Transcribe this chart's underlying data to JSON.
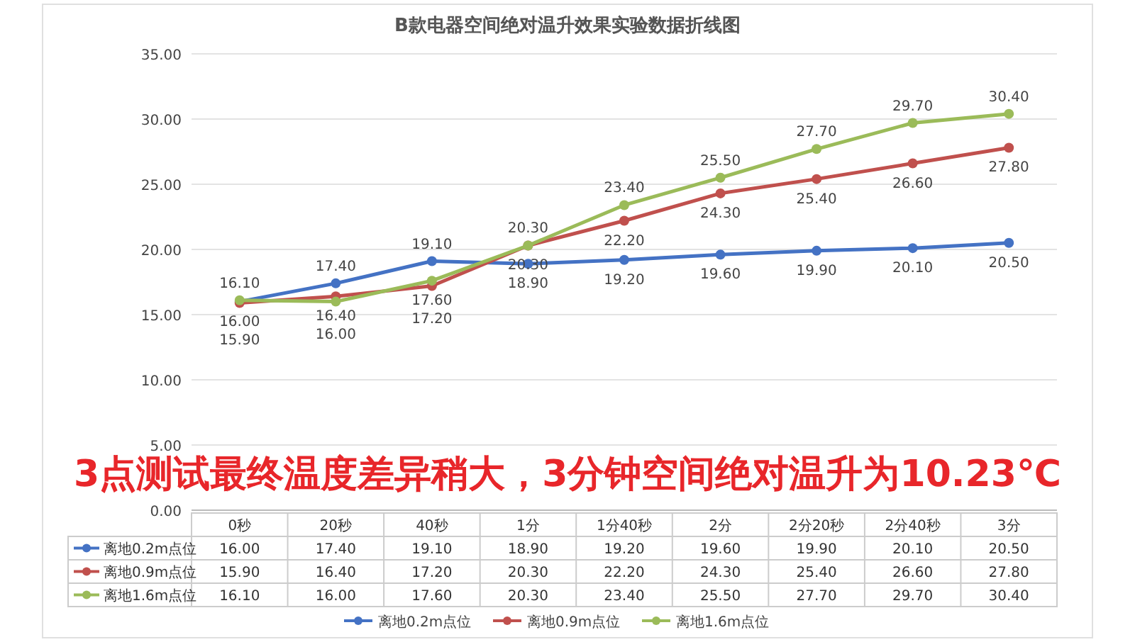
{
  "chart_data": {
    "type": "line",
    "title": "B款电器空间绝对温升效果实验数据折线图",
    "categories": [
      "0秒",
      "20秒",
      "40秒",
      "1分",
      "1分40秒",
      "2分",
      "2分20秒",
      "2分40秒",
      "3分"
    ],
    "series": [
      {
        "name": "离地0.2m点位",
        "color": "#4472c4",
        "values": [
          16.0,
          17.4,
          19.1,
          18.9,
          19.2,
          19.6,
          19.9,
          20.1,
          20.5
        ],
        "value_labels": [
          "16.00",
          "17.40",
          "19.10",
          "18.90",
          "19.20",
          "19.60",
          "19.90",
          "20.10",
          "20.50"
        ]
      },
      {
        "name": "离地0.9m点位",
        "color": "#c0504d",
        "values": [
          15.9,
          16.4,
          17.2,
          20.3,
          22.2,
          24.3,
          25.4,
          26.6,
          27.8
        ],
        "value_labels": [
          "15.90",
          "16.40",
          "17.20",
          "20.30",
          "22.20",
          "24.30",
          "25.40",
          "26.60",
          "27.80"
        ]
      },
      {
        "name": "离地1.6m点位",
        "color": "#9bbb59",
        "values": [
          16.1,
          16.0,
          17.6,
          20.3,
          23.4,
          25.5,
          27.7,
          29.7,
          30.4
        ],
        "value_labels": [
          "16.10",
          "16.00",
          "17.60",
          "20.30",
          "23.40",
          "25.50",
          "27.70",
          "29.70",
          "30.40"
        ]
      }
    ],
    "ylim": [
      0,
      35
    ],
    "yticks": [
      {
        "value": 0,
        "label": "0.00"
      },
      {
        "value": 5,
        "label": "5.00"
      },
      {
        "value": 10,
        "label": "10.00"
      },
      {
        "value": 15,
        "label": "15.00"
      },
      {
        "value": 20,
        "label": "20.00"
      },
      {
        "value": 25,
        "label": "25.00"
      },
      {
        "value": 30,
        "label": "30.00"
      },
      {
        "value": 35,
        "label": "35.00"
      }
    ],
    "grid": "y",
    "legend": "bottom",
    "marker": "circle",
    "annotations": [
      "3点测试最终温度差异稍大，3分钟空间绝对温升为10.23℃"
    ]
  }
}
